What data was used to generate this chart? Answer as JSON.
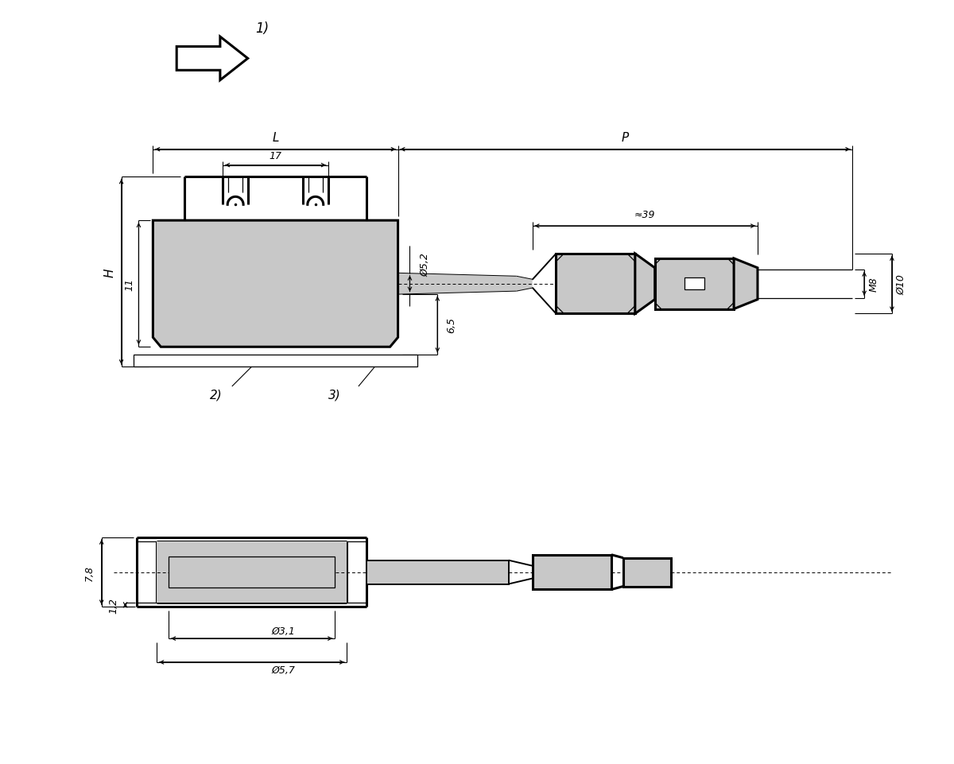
{
  "bg_color": "#ffffff",
  "line_color": "#000000",
  "fill_color": "#c8c8c8",
  "figsize": [
    12.0,
    9.62
  ],
  "dpi": 100,
  "labels": {
    "L": "L",
    "P": "P",
    "dim_17": "17",
    "dim_phi52": "Ø5,2",
    "dim_65": "6,5",
    "dim_H": "H",
    "dim_11": "11",
    "dim_approx39": "≈39",
    "dim_M8": "M8",
    "dim_phi10": "Ø10",
    "label_1": "1)",
    "label_2": "2)",
    "label_3": "3)",
    "dim_78": "7,8",
    "dim_12": "1,2",
    "dim_phi31": "Ø3,1",
    "dim_phi57": "Ø5,7"
  }
}
